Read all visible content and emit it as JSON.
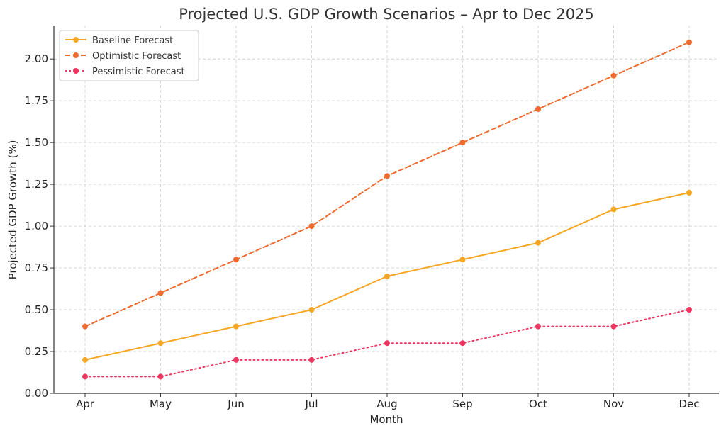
{
  "chart_data": {
    "type": "line",
    "title": "Projected U.S. GDP Growth Scenarios – Apr to Dec 2025",
    "xlabel": "Month",
    "ylabel": "Projected GDP Growth (%)",
    "categories": [
      "Apr",
      "May",
      "Jun",
      "Jul",
      "Aug",
      "Sep",
      "Oct",
      "Nov",
      "Dec"
    ],
    "ylim": [
      0,
      2.2
    ],
    "yticks": [
      "0.00",
      "0.25",
      "0.50",
      "0.75",
      "1.00",
      "1.25",
      "1.50",
      "1.75",
      "2.00"
    ],
    "grid": true,
    "legend_position": "top-left",
    "series": [
      {
        "name": "Baseline Forecast",
        "color": "#F5A623",
        "style": "solid",
        "values": [
          0.2,
          0.3,
          0.4,
          0.5,
          0.7,
          0.8,
          0.9,
          1.1,
          1.2
        ]
      },
      {
        "name": "Optimistic Forecast",
        "color": "#EE6A2E",
        "style": "dashed",
        "values": [
          0.4,
          0.6,
          0.8,
          1.0,
          1.3,
          1.5,
          1.7,
          1.9,
          2.1
        ]
      },
      {
        "name": "Pessimistic Forecast",
        "color": "#EE3560",
        "style": "dotted",
        "values": [
          0.1,
          0.1,
          0.2,
          0.2,
          0.3,
          0.3,
          0.4,
          0.4,
          0.5
        ]
      }
    ]
  }
}
